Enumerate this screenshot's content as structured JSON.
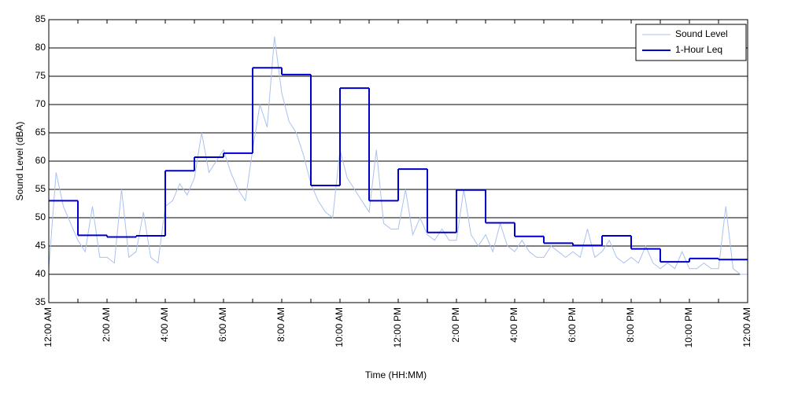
{
  "chart_data": {
    "type": "line",
    "xlabel": "Time (HH:MM)",
    "ylabel": "Sound Level (dBA)",
    "xlim": [
      0,
      24
    ],
    "ylim": [
      35,
      85
    ],
    "xticks": [
      {
        "value": 0,
        "label": "12:00 AM"
      },
      {
        "value": 2,
        "label": "2:00 AM"
      },
      {
        "value": 4,
        "label": "4:00 AM"
      },
      {
        "value": 6,
        "label": "6:00 AM"
      },
      {
        "value": 8,
        "label": "8:00 AM"
      },
      {
        "value": 10,
        "label": "10:00 AM"
      },
      {
        "value": 12,
        "label": "12:00 PM"
      },
      {
        "value": 14,
        "label": "2:00 PM"
      },
      {
        "value": 16,
        "label": "4:00 PM"
      },
      {
        "value": 18,
        "label": "6:00 PM"
      },
      {
        "value": 20,
        "label": "8:00 PM"
      },
      {
        "value": 22,
        "label": "10:00 PM"
      },
      {
        "value": 24,
        "label": "12:00 AM"
      }
    ],
    "xminorticks": [
      1,
      3,
      5,
      7,
      9,
      11,
      13,
      15,
      17,
      19,
      21,
      23
    ],
    "yticks": [
      35,
      40,
      45,
      50,
      55,
      60,
      65,
      70,
      75,
      80,
      85
    ],
    "grid": true,
    "legend": "top-right",
    "series": [
      {
        "name": "Sound Level",
        "color": "#a9c1f0",
        "step": false,
        "x": [
          0,
          0.25,
          0.5,
          0.75,
          1,
          1.25,
          1.5,
          1.75,
          2,
          2.25,
          2.5,
          2.75,
          3,
          3.25,
          3.5,
          3.75,
          4,
          4.25,
          4.5,
          4.75,
          5,
          5.25,
          5.5,
          5.75,
          6,
          6.25,
          6.5,
          6.75,
          7,
          7.25,
          7.5,
          7.75,
          8,
          8.25,
          8.5,
          8.75,
          9,
          9.25,
          9.5,
          9.75,
          10,
          10.25,
          10.5,
          10.75,
          11,
          11.25,
          11.5,
          11.75,
          12,
          12.25,
          12.5,
          12.75,
          13,
          13.25,
          13.5,
          13.75,
          14,
          14.25,
          14.5,
          14.75,
          15,
          15.25,
          15.5,
          15.75,
          16,
          16.25,
          16.5,
          16.75,
          17,
          17.25,
          17.5,
          17.75,
          18,
          18.25,
          18.5,
          18.75,
          19,
          19.25,
          19.5,
          19.75,
          20,
          20.25,
          20.5,
          20.75,
          21,
          21.25,
          21.5,
          21.75,
          22,
          22.25,
          22.5,
          22.75,
          23,
          23.25,
          23.5,
          23.75,
          24
        ],
        "values": [
          41,
          58,
          52,
          49,
          46,
          44,
          52,
          43,
          43,
          42,
          55,
          43,
          44,
          51,
          43,
          42,
          52,
          53,
          56,
          54,
          57,
          65,
          58,
          60,
          62,
          58,
          55,
          53,
          62,
          70,
          66,
          82,
          72,
          67,
          65,
          61,
          56,
          53,
          51,
          50,
          62,
          57,
          55,
          53,
          51,
          62,
          49,
          48,
          48,
          55,
          47,
          50,
          47,
          46,
          48,
          46,
          46,
          55,
          47,
          45,
          47,
          44,
          49,
          45,
          44,
          46,
          44,
          43,
          43,
          45,
          44,
          43,
          44,
          43,
          48,
          43,
          44,
          46,
          43,
          42,
          43,
          42,
          45,
          42,
          41,
          42,
          41,
          44,
          41,
          41,
          42,
          41,
          41,
          52,
          41,
          40,
          40
        ]
      },
      {
        "name": "1-Hour Leq",
        "color": "#0000cc",
        "step": true,
        "x": [
          0,
          1,
          2,
          3,
          4,
          5,
          6,
          7,
          8,
          9,
          10,
          11,
          12,
          13,
          14,
          15,
          16,
          17,
          18,
          19,
          20,
          21,
          22,
          23
        ],
        "values": [
          53,
          46.9,
          46.6,
          46.8,
          58.3,
          60.7,
          61.4,
          76.5,
          75.3,
          55.7,
          72.9,
          53,
          58.6,
          47.4,
          54.9,
          49.1,
          46.7,
          45.5,
          45.1,
          46.8,
          44.5,
          42.2,
          42.8,
          42.6
        ]
      }
    ]
  }
}
